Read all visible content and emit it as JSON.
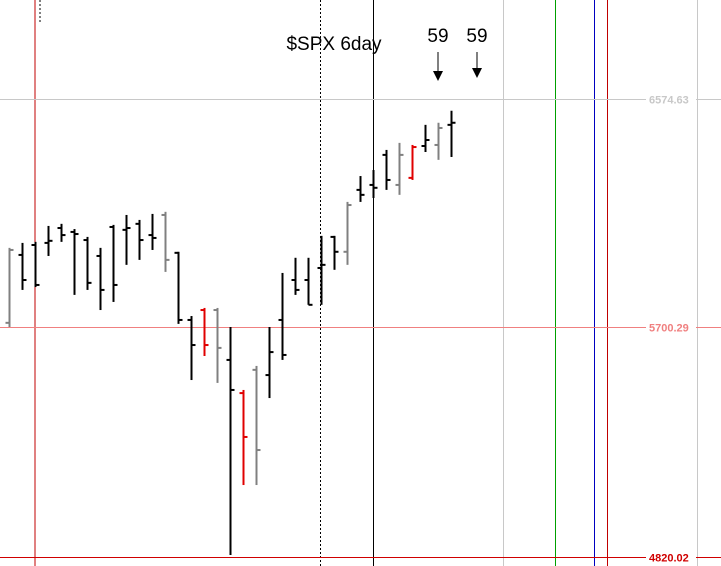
{
  "chart_data": {
    "type": "ohlc",
    "title": "$SPX 6day",
    "annotations": [
      "59",
      "59"
    ],
    "categories": [
      null,
      null,
      null,
      null,
      null,
      null,
      null,
      null,
      null,
      null,
      null,
      null,
      null,
      null,
      null,
      null,
      null,
      null,
      null,
      null,
      null,
      null,
      null,
      null,
      null,
      null,
      null,
      null,
      null,
      null,
      null,
      null,
      null,
      null,
      null
    ],
    "open": [
      5716,
      5976,
      6014,
      6022,
      6079,
      6064,
      6033,
      5972,
      6083,
      6072,
      6095,
      6052,
      6129,
      5984,
      5727,
      5765,
      5765,
      5574,
      5447,
      5536,
      5516,
      5727,
      5880,
      5880,
      5926,
      6045,
      5988,
      6225,
      6244,
      6359,
      6244,
      6271,
      6393,
      6397,
      6474
    ],
    "high": [
      6003,
      6022,
      6026,
      6087,
      6095,
      6075,
      6045,
      6003,
      6091,
      6129,
      6110,
      6133,
      6141,
      5988,
      5742,
      5773,
      5773,
      5700,
      5459,
      5551,
      5700,
      5907,
      5965,
      5965,
      6049,
      6049,
      6179,
      6278,
      6301,
      6378,
      6405,
      6397,
      6474,
      6482,
      6528
    ],
    "low": [
      5700,
      5842,
      5853,
      5972,
      6026,
      5823,
      5842,
      5765,
      5796,
      5938,
      5957,
      5995,
      5911,
      5712,
      5497,
      5589,
      5486,
      4827,
      5095,
      5095,
      5428,
      5574,
      5823,
      5785,
      5785,
      5919,
      5938,
      6179,
      6194,
      6225,
      6206,
      6263,
      6370,
      6340,
      6351
    ],
    "close": [
      5995,
      5880,
      5861,
      6030,
      6052,
      6056,
      5869,
      5842,
      5861,
      6079,
      6033,
      6041,
      5957,
      5727,
      5631,
      5631,
      5620,
      5459,
      5279,
      5229,
      5604,
      5593,
      5842,
      5785,
      5938,
      5988,
      6167,
      6206,
      6233,
      6263,
      6359,
      6389,
      6416,
      6462,
      6482
    ],
    "colors": [
      "#808080",
      "#000000",
      "#000000",
      "#000000",
      "#000000",
      "#000000",
      "#000000",
      "#000000",
      "#000000",
      "#000000",
      "#000000",
      "#000000",
      "#808080",
      "#000000",
      "#000000",
      "#e00000",
      "#808080",
      "#000000",
      "#e00000",
      "#808080",
      "#000000",
      "#000000",
      "#000000",
      "#000000",
      "#000000",
      "#000000",
      "#808080",
      "#000000",
      "#000000",
      "#000000",
      "#808080",
      "#e00000",
      "#000000",
      "#808080",
      "#000000"
    ],
    "ylim": [
      4785,
      6952
    ],
    "yticks": [
      6574.63,
      5700.29,
      4820.02
    ],
    "ytick_colors": [
      "#c8c8c8",
      "#f08080",
      "#d00000"
    ]
  }
}
